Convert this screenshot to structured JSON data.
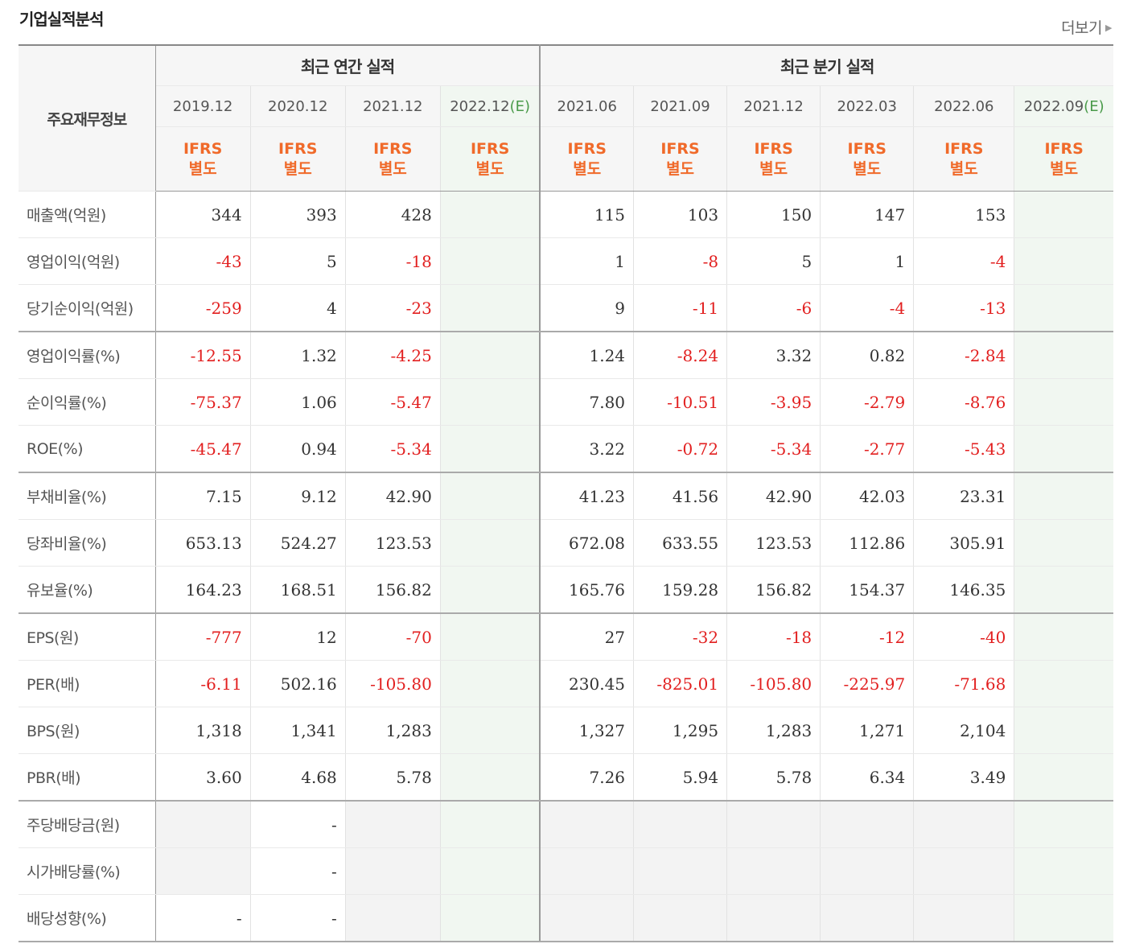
{
  "header": {
    "title": "기업실적분석",
    "more_label": "더보기"
  },
  "table": {
    "row_header_label": "주요재무정보",
    "annual_title": "최근 연간 실적",
    "quarter_title": "최근 분기 실적",
    "periods": [
      "2019.12",
      "2020.12",
      "2021.12",
      "2022.12",
      "2021.06",
      "2021.09",
      "2021.12",
      "2022.03",
      "2022.06",
      "2022.09"
    ],
    "estimate_suffix": "(E)",
    "standard_line1": "IFRS",
    "standard_line2": "별도",
    "rows": [
      {
        "label": "매출액(억원)",
        "values": [
          "344",
          "393",
          "428",
          "",
          "115",
          "103",
          "150",
          "147",
          "153",
          ""
        ]
      },
      {
        "label": "영업이익(억원)",
        "values": [
          "-43",
          "5",
          "-18",
          "",
          "1",
          "-8",
          "5",
          "1",
          "-4",
          ""
        ]
      },
      {
        "label": "당기순이익(억원)",
        "values": [
          "-259",
          "4",
          "-23",
          "",
          "9",
          "-11",
          "-6",
          "-4",
          "-13",
          ""
        ]
      },
      {
        "label": "영업이익률(%)",
        "values": [
          "-12.55",
          "1.32",
          "-4.25",
          "",
          "1.24",
          "-8.24",
          "3.32",
          "0.82",
          "-2.84",
          ""
        ]
      },
      {
        "label": "순이익률(%)",
        "values": [
          "-75.37",
          "1.06",
          "-5.47",
          "",
          "7.80",
          "-10.51",
          "-3.95",
          "-2.79",
          "-8.76",
          ""
        ]
      },
      {
        "label": "ROE(%)",
        "values": [
          "-45.47",
          "0.94",
          "-5.34",
          "",
          "3.22",
          "-0.72",
          "-5.34",
          "-2.77",
          "-5.43",
          ""
        ]
      },
      {
        "label": "부채비율(%)",
        "values": [
          "7.15",
          "9.12",
          "42.90",
          "",
          "41.23",
          "41.56",
          "42.90",
          "42.03",
          "23.31",
          ""
        ]
      },
      {
        "label": "당좌비율(%)",
        "values": [
          "653.13",
          "524.27",
          "123.53",
          "",
          "672.08",
          "633.55",
          "123.53",
          "112.86",
          "305.91",
          ""
        ]
      },
      {
        "label": "유보율(%)",
        "values": [
          "164.23",
          "168.51",
          "156.82",
          "",
          "165.76",
          "159.28",
          "156.82",
          "154.37",
          "146.35",
          ""
        ]
      },
      {
        "label": "EPS(원)",
        "values": [
          "-777",
          "12",
          "-70",
          "",
          "27",
          "-32",
          "-18",
          "-12",
          "-40",
          ""
        ]
      },
      {
        "label": "PER(배)",
        "values": [
          "-6.11",
          "502.16",
          "-105.80",
          "",
          "230.45",
          "-825.01",
          "-105.80",
          "-225.97",
          "-71.68",
          ""
        ]
      },
      {
        "label": "BPS(원)",
        "values": [
          "1,318",
          "1,341",
          "1,283",
          "",
          "1,327",
          "1,295",
          "1,283",
          "1,271",
          "2,104",
          ""
        ]
      },
      {
        "label": "PBR(배)",
        "values": [
          "3.60",
          "4.68",
          "5.78",
          "",
          "7.26",
          "5.94",
          "5.78",
          "6.34",
          "3.49",
          ""
        ]
      },
      {
        "label": "주당배당금(원)",
        "values": [
          "",
          "-",
          "",
          "",
          "",
          "",
          "",
          "",
          "",
          ""
        ]
      },
      {
        "label": "시가배당률(%)",
        "values": [
          "",
          "-",
          "",
          "",
          "",
          "",
          "",
          "",
          "",
          ""
        ]
      },
      {
        "label": "배당성향(%)",
        "values": [
          "-",
          "-",
          "",
          "",
          "",
          "",
          "",
          "",
          "",
          ""
        ]
      }
    ]
  }
}
